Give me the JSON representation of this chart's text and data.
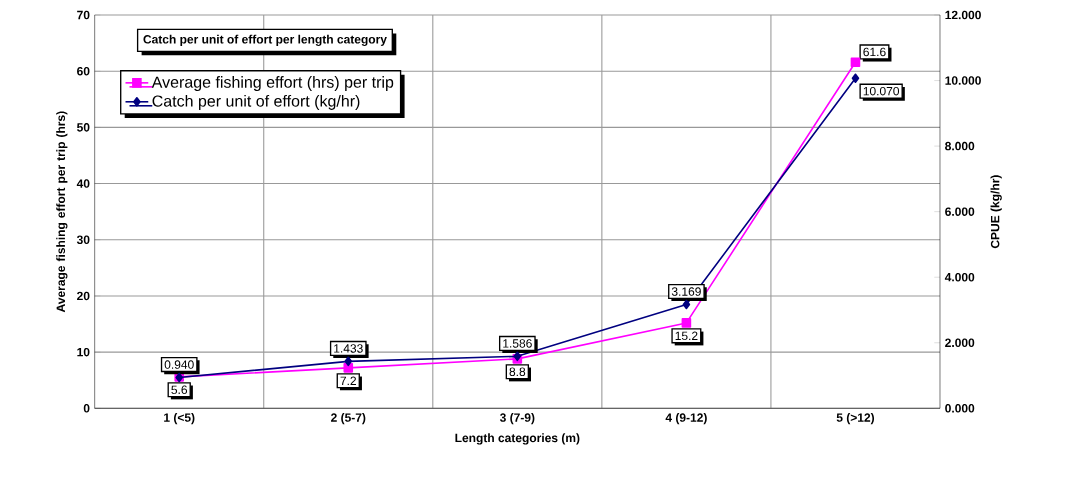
{
  "chart_data": {
    "type": "line",
    "title": "Catch per unit of effort per length category",
    "xlabel": "Length categories (m)",
    "ylabel": "Average fishing effort per trip (hrs)",
    "y2label": "CPUE (kg/hr)",
    "categories": [
      "1 (<5)",
      "2 (5-7)",
      "3 (7-9)",
      "4 (9-12)",
      "5 (>12)"
    ],
    "series": [
      {
        "name": "Average fishing effort (hrs) per trip",
        "color": "#ff00ff",
        "marker": "square",
        "values": [
          5.6,
          7.2,
          8.8,
          15.2,
          61.6
        ],
        "value_labels": [
          "5.6",
          "7.2",
          "8.8",
          "15.2",
          "61.6"
        ]
      },
      {
        "name": "Catch per unit of effort (kg/hr)",
        "color": "#000080",
        "marker": "diamond",
        "axis": "y2",
        "values": [
          0.94,
          1.433,
          1.586,
          3.169,
          10.07
        ],
        "value_labels": [
          "0.940",
          "1.433",
          "1.586",
          "3.169",
          "10.070"
        ]
      }
    ],
    "ylim": [
      0,
      70
    ],
    "yticks": [
      0,
      10,
      20,
      30,
      40,
      50,
      60,
      70
    ],
    "y2lim": [
      0,
      12
    ],
    "y2ticks": [
      {
        "value": 0,
        "label": "0.000"
      },
      {
        "value": 2,
        "label": "2.000"
      },
      {
        "value": 4,
        "label": "4.000"
      },
      {
        "value": 6,
        "label": "6.000"
      },
      {
        "value": 8,
        "label": "8.000"
      },
      {
        "value": 10,
        "label": "10.000"
      },
      {
        "value": 12,
        "label": "12.000"
      }
    ],
    "grid": true,
    "legend": "top left",
    "line_style": "solid"
  }
}
